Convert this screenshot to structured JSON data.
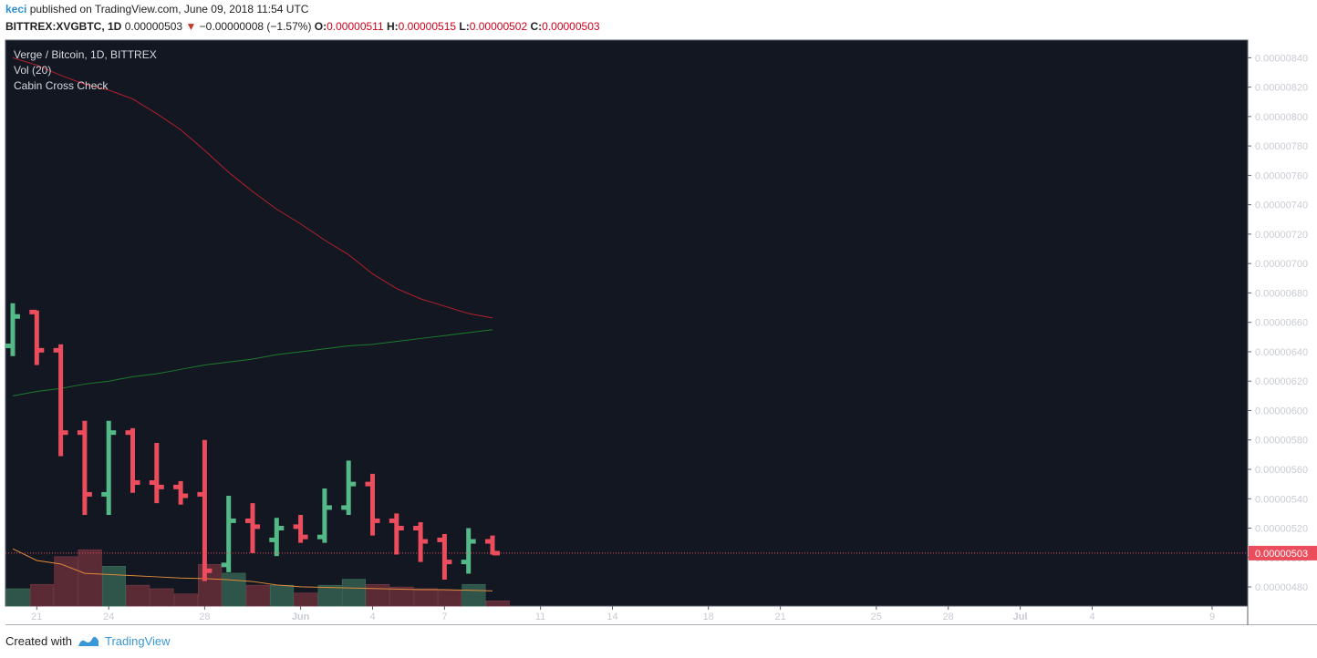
{
  "header": {
    "user": "keci",
    "published_text": "published on TradingView.com, June 09, 2018 11:54 UTC",
    "symbol": "BITTREX:XVGBTC, 1D",
    "last": "0.00000503",
    "change": "−0.00000008 (−1.57%)",
    "o_label": "O:",
    "o_value": "0.00000511",
    "h_label": "H:",
    "h_value": "0.00000515",
    "l_label": "L:",
    "l_value": "0.00000502",
    "c_label": "C:",
    "c_value": "0.00000503"
  },
  "legend": {
    "title": "Verge / Bitcoin, 1D, BITTREX",
    "vol": "Vol (20)",
    "indicator": "Cabin Cross Check"
  },
  "price_label": "0.00000503",
  "footer": {
    "created_with": "Created with",
    "brand": "TradingView"
  },
  "colors": {
    "background": "#131722",
    "up": "#53b987",
    "down": "#eb4d5c",
    "vol_up": "#2f5449",
    "vol_down": "#5b2b35",
    "ma_red": "#b3202a",
    "ma_green": "#1e7a2e",
    "vol_ma": "#e08a3a",
    "axis_text": "#c8cbd2",
    "border": "#5a5f6e"
  },
  "chart_data": {
    "type": "ohlc",
    "title": "Verge / Bitcoin, 1D, BITTREX",
    "x_ticks": [
      "21",
      "24",
      "28",
      "Jun",
      "4",
      "7",
      "11",
      "14",
      "18",
      "21",
      "25",
      "28",
      "Jul",
      "4",
      "9"
    ],
    "y_ticks": [
      "0.00000480",
      "0.00000500",
      "0.00000520",
      "0.00000540",
      "0.00000560",
      "0.00000580",
      "0.00000600",
      "0.00000620",
      "0.00000640",
      "0.00000660",
      "0.00000680",
      "0.00000700",
      "0.00000720",
      "0.00000740",
      "0.00000760",
      "0.00000780",
      "0.00000800",
      "0.00000820",
      "0.00000840"
    ],
    "ylim": [
      4.67e-06,
      8.52e-06
    ],
    "bars": [
      {
        "date": "May 20",
        "open": 6.44e-06,
        "high": 6.73e-06,
        "low": 6.37e-06,
        "close": 6.64e-06,
        "vol": 0.2
      },
      {
        "date": "May 21",
        "open": 6.67e-06,
        "high": 6.68e-06,
        "low": 6.31e-06,
        "close": 6.41e-06,
        "vol": 0.25
      },
      {
        "date": "May 22",
        "open": 6.41e-06,
        "high": 6.45e-06,
        "low": 5.69e-06,
        "close": 5.85e-06,
        "vol": 0.57
      },
      {
        "date": "May 23",
        "open": 5.85e-06,
        "high": 5.93e-06,
        "low": 5.29e-06,
        "close": 5.43e-06,
        "vol": 0.65
      },
      {
        "date": "May 24",
        "open": 5.43e-06,
        "high": 5.93e-06,
        "low": 5.29e-06,
        "close": 5.85e-06,
        "vol": 0.46
      },
      {
        "date": "May 25",
        "open": 5.85e-06,
        "high": 5.88e-06,
        "low": 5.44e-06,
        "close": 5.51e-06,
        "vol": 0.24
      },
      {
        "date": "May 26",
        "open": 5.51e-06,
        "high": 5.78e-06,
        "low": 5.37e-06,
        "close": 5.48e-06,
        "vol": 0.2
      },
      {
        "date": "May 27",
        "open": 5.48e-06,
        "high": 5.52e-06,
        "low": 5.36e-06,
        "close": 5.42e-06,
        "vol": 0.14
      },
      {
        "date": "May 28",
        "open": 5.43e-06,
        "high": 5.8e-06,
        "low": 4.84e-06,
        "close": 4.91e-06,
        "vol": 0.48
      },
      {
        "date": "May 29",
        "open": 4.95e-06,
        "high": 5.42e-06,
        "low": 4.9e-06,
        "close": 5.25e-06,
        "vol": 0.38
      },
      {
        "date": "May 30",
        "open": 5.25e-06,
        "high": 5.37e-06,
        "low": 5.03e-06,
        "close": 5.21e-06,
        "vol": 0.24
      },
      {
        "date": "May 31",
        "open": 5.12e-06,
        "high": 5.27e-06,
        "low": 5.01e-06,
        "close": 5.2e-06,
        "vol": 0.24
      },
      {
        "date": "Jun 1",
        "open": 5.21e-06,
        "high": 5.29e-06,
        "low": 5.1e-06,
        "close": 5.14e-06,
        "vol": 0.15
      },
      {
        "date": "Jun 2",
        "open": 5.14e-06,
        "high": 5.47e-06,
        "low": 5.1e-06,
        "close": 5.34e-06,
        "vol": 0.24
      },
      {
        "date": "Jun 3",
        "open": 5.34e-06,
        "high": 5.66e-06,
        "low": 5.29e-06,
        "close": 5.5e-06,
        "vol": 0.31
      },
      {
        "date": "Jun 4",
        "open": 5.5e-06,
        "high": 5.57e-06,
        "low": 5.15e-06,
        "close": 5.25e-06,
        "vol": 0.25
      },
      {
        "date": "Jun 5",
        "open": 5.25e-06,
        "high": 5.3e-06,
        "low": 5.02e-06,
        "close": 5.2e-06,
        "vol": 0.22
      },
      {
        "date": "Jun 6",
        "open": 5.2e-06,
        "high": 5.24e-06,
        "low": 4.97e-06,
        "close": 5.11e-06,
        "vol": 0.2
      },
      {
        "date": "Jun 7",
        "open": 5.12e-06,
        "high": 5.16e-06,
        "low": 4.85e-06,
        "close": 4.97e-06,
        "vol": 0.18
      },
      {
        "date": "Jun 8",
        "open": 4.97e-06,
        "high": 5.2e-06,
        "low": 4.89e-06,
        "close": 5.11e-06,
        "vol": 0.25
      },
      {
        "date": "Jun 9",
        "open": 5.11e-06,
        "high": 5.15e-06,
        "low": 5.02e-06,
        "close": 5.03e-06,
        "vol": 0.06
      }
    ],
    "ma_red": [
      8.4e-06,
      8.35e-06,
      8.28e-06,
      8.22e-06,
      8.18e-06,
      8.12e-06,
      8.02e-06,
      7.91e-06,
      7.77e-06,
      7.62e-06,
      7.49e-06,
      7.37e-06,
      7.27e-06,
      7.16e-06,
      7.06e-06,
      6.93e-06,
      6.83e-06,
      6.76e-06,
      6.71e-06,
      6.66e-06,
      6.63e-06
    ],
    "ma_green": [
      6.1e-06,
      6.13e-06,
      6.15e-06,
      6.18e-06,
      6.2e-06,
      6.23e-06,
      6.25e-06,
      6.28e-06,
      6.31e-06,
      6.33e-06,
      6.35e-06,
      6.38e-06,
      6.4e-06,
      6.42e-06,
      6.44e-06,
      6.45e-06,
      6.47e-06,
      6.49e-06,
      6.51e-06,
      6.53e-06,
      6.55e-06
    ],
    "vol_ma": [
      0.49,
      0.39,
      0.36,
      0.28,
      0.27,
      0.26,
      0.25,
      0.24,
      0.235,
      0.225,
      0.21,
      0.18,
      0.165,
      0.16,
      0.155,
      0.15,
      0.145,
      0.14,
      0.14,
      0.135,
      0.13
    ]
  }
}
